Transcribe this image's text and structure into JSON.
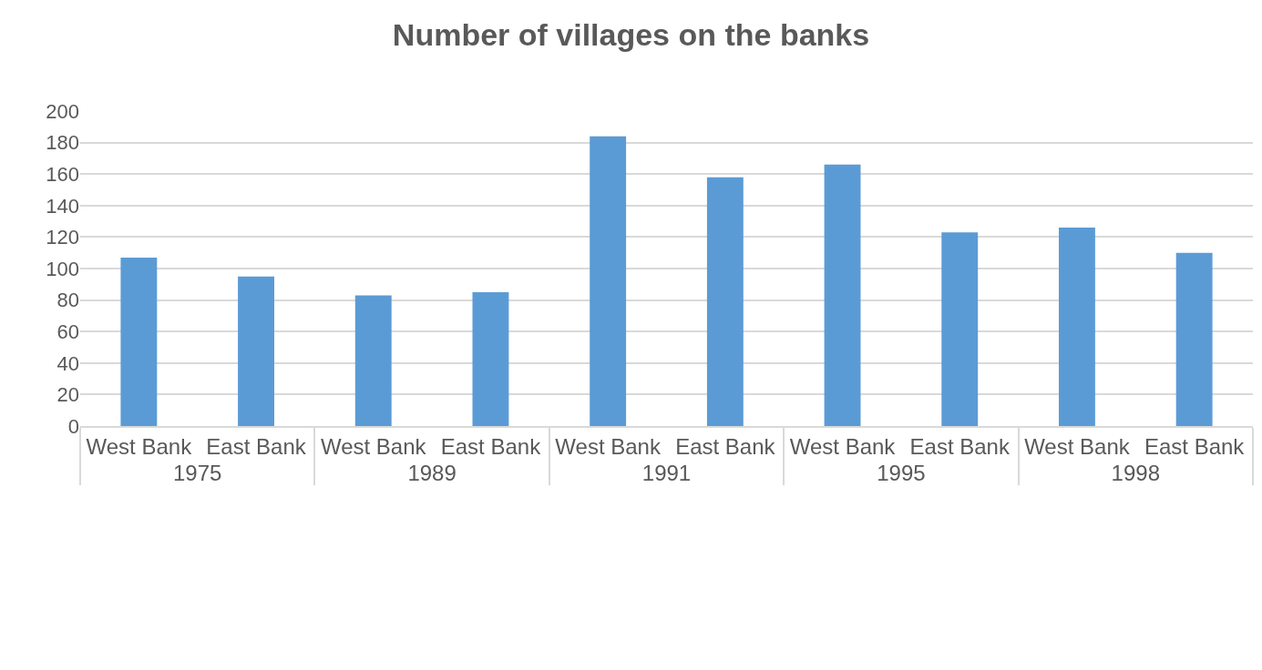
{
  "chart_data": {
    "type": "bar",
    "title": "Number of villages on the banks",
    "categories": [
      "1975",
      "1989",
      "1991",
      "1995",
      "1998"
    ],
    "series": [
      {
        "name": "West Bank",
        "color": "#5b9bd5",
        "values": [
          107,
          83,
          184,
          166,
          126
        ]
      },
      {
        "name": "East Bank",
        "color": "#5b9bd5",
        "values": [
          95,
          85,
          158,
          123,
          110
        ]
      }
    ],
    "ylim": [
      0,
      200
    ],
    "yticks": [
      0,
      20,
      40,
      60,
      80,
      100,
      120,
      140,
      160,
      180,
      200
    ],
    "grid": "y",
    "legend": false
  }
}
